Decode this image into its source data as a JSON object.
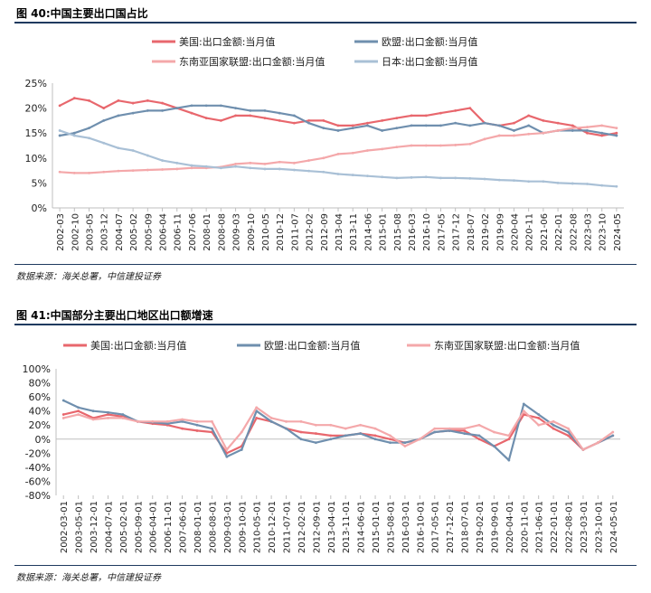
{
  "colors": {
    "us": "#e8676d",
    "eu": "#6f8fae",
    "asean": "#f4a8aa",
    "japan": "#a9c0d6",
    "axis": "#bfbfbf",
    "rule": "#1f3a5f"
  },
  "fig40": {
    "title": "图 40:中国主要出口国占比",
    "source": "数据来源：海关总署，中信建投证券"
  },
  "fig41": {
    "title": "图 41:中国部分主要出口地区出口额增速",
    "source": "数据来源：海关总署，中信建投证券"
  },
  "chart_data": [
    {
      "type": "line",
      "title": "图 40:中国主要出口国占比",
      "ylim": [
        0,
        25
      ],
      "yticks": [
        "25%",
        "20%",
        "15%",
        "10%",
        "5%",
        "0%"
      ],
      "ytick_values": [
        25,
        20,
        15,
        10,
        5,
        0
      ],
      "legend_position": "top",
      "categories": [
        "2002-03",
        "2002-10",
        "2003-05",
        "2003-12",
        "2004-07",
        "2005-02",
        "2005-09",
        "2006-04",
        "2006-11",
        "2007-06",
        "2008-01",
        "2008-08",
        "2009-03",
        "2009-10",
        "2010-05",
        "2010-12",
        "2011-07",
        "2012-02",
        "2012-09",
        "2013-04",
        "2013-11",
        "2014-06",
        "2015-01",
        "2015-08",
        "2016-03",
        "2016-10",
        "2017-05",
        "2017-12",
        "2018-07",
        "2019-02",
        "2019-09",
        "2020-04",
        "2020-11",
        "2021-06",
        "2022-01",
        "2022-08",
        "2023-03",
        "2023-10",
        "2024-05"
      ],
      "series": [
        {
          "name": "美国:出口金额:当月值",
          "key": "us",
          "values": [
            20.5,
            22.0,
            21.5,
            20.0,
            21.5,
            21.0,
            21.5,
            21.0,
            20.0,
            19.0,
            18.0,
            17.5,
            18.5,
            18.5,
            18.0,
            17.5,
            17.0,
            17.5,
            17.5,
            16.5,
            16.5,
            17.0,
            17.5,
            18.0,
            18.5,
            18.5,
            19.0,
            19.5,
            20.0,
            17.0,
            16.5,
            17.0,
            18.5,
            17.5,
            17.0,
            16.5,
            15.0,
            14.5,
            15.0
          ]
        },
        {
          "name": "欧盟:出口金额:当月值",
          "key": "eu",
          "values": [
            14.5,
            15.0,
            16.0,
            17.5,
            18.5,
            19.0,
            19.5,
            19.5,
            20.0,
            20.5,
            20.5,
            20.5,
            20.0,
            19.5,
            19.5,
            19.0,
            18.5,
            17.0,
            16.0,
            15.5,
            16.0,
            16.5,
            15.5,
            16.0,
            16.5,
            16.5,
            16.5,
            17.0,
            16.5,
            17.0,
            16.5,
            15.5,
            16.5,
            15.0,
            15.5,
            15.5,
            15.5,
            15.0,
            14.5
          ]
        },
        {
          "name": "东南亚国家联盟:出口金额:当月值",
          "key": "asean",
          "values": [
            7.2,
            7.0,
            7.0,
            7.2,
            7.4,
            7.5,
            7.6,
            7.7,
            7.8,
            8.0,
            8.0,
            8.2,
            8.8,
            9.0,
            8.8,
            9.2,
            9.0,
            9.5,
            10.0,
            10.8,
            11.0,
            11.5,
            11.8,
            12.2,
            12.5,
            12.5,
            12.5,
            12.6,
            12.8,
            13.8,
            14.5,
            14.5,
            14.8,
            15.0,
            15.5,
            16.0,
            16.2,
            16.5,
            16.0
          ]
        },
        {
          "name": "日本:出口金额:当月值",
          "key": "japan",
          "values": [
            15.5,
            14.5,
            14.0,
            13.0,
            12.0,
            11.5,
            10.5,
            9.5,
            9.0,
            8.5,
            8.3,
            8.0,
            8.3,
            8.0,
            7.8,
            7.8,
            7.6,
            7.4,
            7.2,
            6.8,
            6.6,
            6.4,
            6.2,
            6.0,
            6.1,
            6.2,
            6.0,
            6.0,
            5.9,
            5.8,
            5.6,
            5.5,
            5.3,
            5.3,
            5.0,
            4.9,
            4.8,
            4.5,
            4.3
          ]
        }
      ]
    },
    {
      "type": "line",
      "title": "图 41:中国部分主要出口地区出口额增速",
      "ylim": [
        -80,
        100
      ],
      "yticks": [
        "100%",
        "80%",
        "60%",
        "40%",
        "20%",
        "0%",
        "-20%",
        "-40%",
        "-60%",
        "-80%"
      ],
      "ytick_values": [
        100,
        80,
        60,
        40,
        20,
        0,
        -20,
        -40,
        -60,
        -80
      ],
      "legend_position": "top",
      "categories": [
        "2002-03-01",
        "2003-05-01",
        "2003-12-01",
        "2004-07-01",
        "2005-02-01",
        "2005-09-01",
        "2006-04-01",
        "2006-11-01",
        "2007-06-01",
        "2008-01-01",
        "2008-08-01",
        "2009-03-01",
        "2009-10-01",
        "2010-05-01",
        "2010-12-01",
        "2011-07-01",
        "2012-02-01",
        "2012-09-01",
        "2013-04-01",
        "2013-11-01",
        "2014-06-01",
        "2015-01-01",
        "2015-08-01",
        "2016-03-01",
        "2016-10-01",
        "2017-05-01",
        "2017-12-01",
        "2018-07-01",
        "2019-02-01",
        "2019-09-01",
        "2020-04-01",
        "2020-11-01",
        "2021-06-01",
        "2022-01-01",
        "2022-08-01",
        "2023-03-01",
        "2023-10-01",
        "2024-05-01"
      ],
      "series": [
        {
          "name": "美国:出口金额:当月值",
          "key": "us",
          "values": [
            35,
            40,
            30,
            35,
            32,
            25,
            22,
            20,
            15,
            12,
            10,
            -20,
            -10,
            30,
            25,
            15,
            10,
            8,
            5,
            5,
            8,
            5,
            0,
            -5,
            0,
            10,
            12,
            12,
            0,
            -10,
            0,
            35,
            30,
            15,
            5,
            -15,
            -5,
            5
          ]
        },
        {
          "name": "欧盟:出口金额:当月值",
          "key": "eu",
          "values": [
            55,
            45,
            40,
            38,
            35,
            25,
            24,
            22,
            25,
            20,
            15,
            -25,
            -15,
            40,
            25,
            15,
            0,
            -5,
            0,
            5,
            8,
            0,
            -5,
            -5,
            0,
            10,
            12,
            8,
            5,
            -10,
            -30,
            50,
            35,
            20,
            10,
            -15,
            -5,
            5
          ]
        },
        {
          "name": "东南亚国家联盟:出口金额:当月值",
          "key": "asean",
          "values": [
            30,
            35,
            28,
            30,
            30,
            25,
            25,
            25,
            28,
            25,
            25,
            -15,
            10,
            45,
            30,
            25,
            25,
            20,
            20,
            15,
            20,
            15,
            5,
            -10,
            0,
            15,
            15,
            15,
            20,
            10,
            5,
            40,
            20,
            25,
            15,
            -15,
            -5,
            10
          ]
        }
      ]
    }
  ]
}
